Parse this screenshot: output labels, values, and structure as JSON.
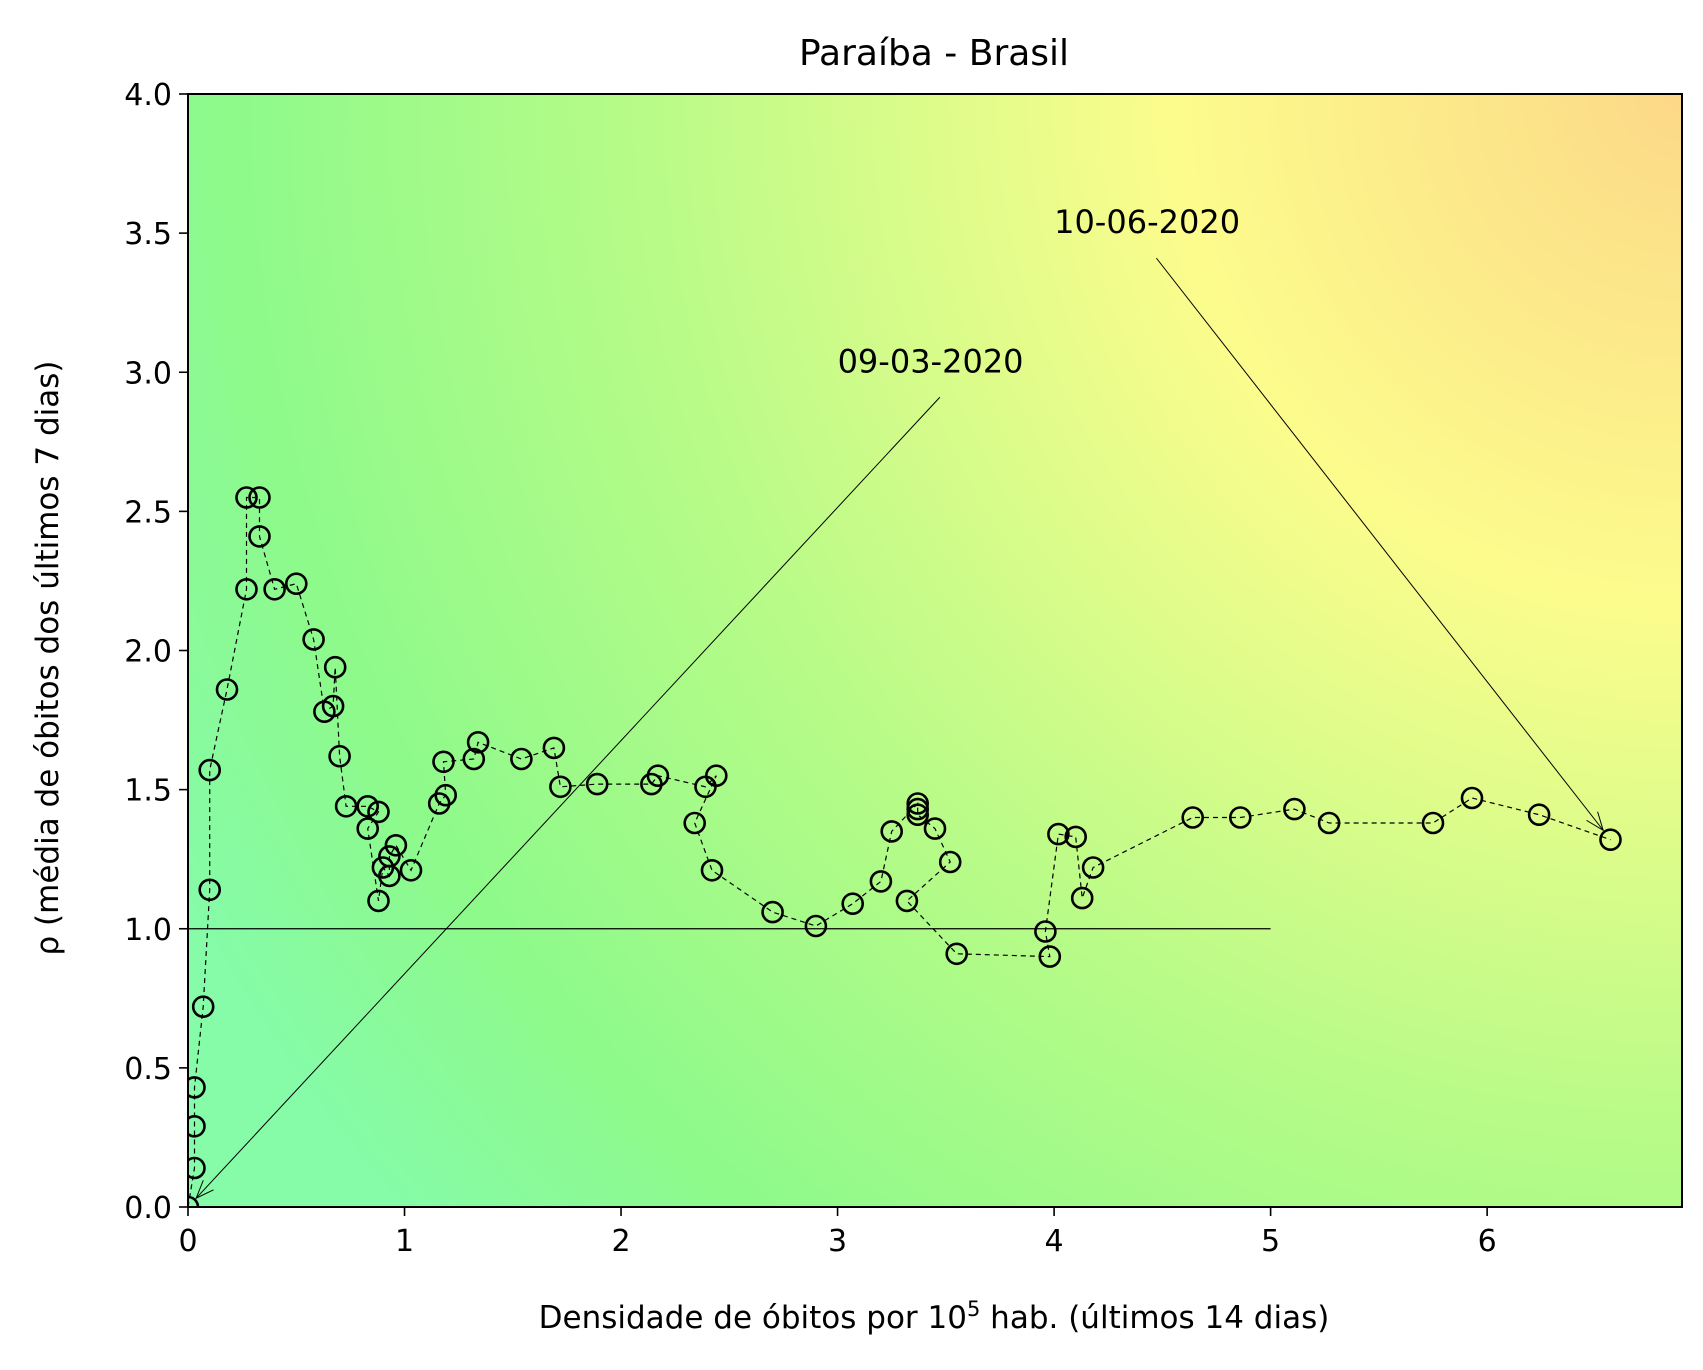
{
  "chart_data": {
    "type": "scatter",
    "title": "Paraíba - Brasil",
    "xlabel": "Densidade de óbitos por 10",
    "xlabel_sup": "5",
    "xlabel_suffix": " hab. (últimos 14 dias)",
    "ylabel": "ρ (média de óbitos dos últimos 7 dias)",
    "xlim": [
      0,
      6.9
    ],
    "ylim": [
      0,
      4.0
    ],
    "x_ticks": [
      0,
      1,
      2,
      3,
      4,
      5,
      6
    ],
    "x_tick_labels": [
      "0",
      "1",
      "2",
      "3",
      "4",
      "5",
      "6"
    ],
    "y_ticks": [
      0.0,
      0.5,
      1.0,
      1.5,
      2.0,
      2.5,
      3.0,
      3.5,
      4.0
    ],
    "y_tick_labels": [
      "0.0",
      "0.5",
      "1.0",
      "1.5",
      "2.0",
      "2.5",
      "3.0",
      "3.5",
      "4.0"
    ],
    "grid": false,
    "background": "gradient green (low-left) to yellow/orange (top-right)",
    "colors": {
      "low": "#86fba8",
      "mid": "#8efa8a",
      "high": "#fcfc8c",
      "corner": "#fcd888",
      "marker": "#000000"
    },
    "reference_line": {
      "y": 1.0,
      "x_start": 0,
      "x_end": 5
    },
    "series": [
      {
        "marker": "circle-open",
        "line": "dashed",
        "points": [
          [
            0.0,
            0.0
          ],
          [
            0.03,
            0.14
          ],
          [
            0.03,
            0.29
          ],
          [
            0.03,
            0.43
          ],
          [
            0.07,
            0.72
          ],
          [
            0.1,
            1.14
          ],
          [
            0.1,
            1.57
          ],
          [
            0.18,
            1.86
          ],
          [
            0.27,
            2.22
          ],
          [
            0.27,
            2.55
          ],
          [
            0.33,
            2.55
          ],
          [
            0.33,
            2.41
          ],
          [
            0.4,
            2.22
          ],
          [
            0.5,
            2.24
          ],
          [
            0.58,
            2.04
          ],
          [
            0.63,
            1.78
          ],
          [
            0.67,
            1.8
          ],
          [
            0.68,
            1.94
          ],
          [
            0.7,
            1.62
          ],
          [
            0.73,
            1.44
          ],
          [
            0.83,
            1.44
          ],
          [
            0.88,
            1.42
          ],
          [
            0.83,
            1.36
          ],
          [
            0.88,
            1.1
          ],
          [
            0.9,
            1.22
          ],
          [
            0.93,
            1.19
          ],
          [
            0.93,
            1.26
          ],
          [
            0.96,
            1.3
          ],
          [
            1.03,
            1.21
          ],
          [
            1.16,
            1.45
          ],
          [
            1.19,
            1.48
          ],
          [
            1.18,
            1.6
          ],
          [
            1.32,
            1.61
          ],
          [
            1.34,
            1.67
          ],
          [
            1.54,
            1.61
          ],
          [
            1.69,
            1.65
          ],
          [
            1.72,
            1.51
          ],
          [
            1.89,
            1.52
          ],
          [
            2.14,
            1.52
          ],
          [
            2.17,
            1.55
          ],
          [
            2.39,
            1.51
          ],
          [
            2.44,
            1.55
          ],
          [
            2.34,
            1.38
          ],
          [
            2.42,
            1.21
          ],
          [
            2.7,
            1.06
          ],
          [
            2.9,
            1.01
          ],
          [
            3.07,
            1.09
          ],
          [
            3.2,
            1.17
          ],
          [
            3.25,
            1.35
          ],
          [
            3.37,
            1.45
          ],
          [
            3.37,
            1.43
          ],
          [
            3.37,
            1.41
          ],
          [
            3.45,
            1.36
          ],
          [
            3.52,
            1.24
          ],
          [
            3.32,
            1.1
          ],
          [
            3.55,
            0.91
          ],
          [
            3.98,
            0.9
          ],
          [
            3.96,
            0.99
          ],
          [
            4.02,
            1.34
          ],
          [
            4.1,
            1.33
          ],
          [
            4.13,
            1.11
          ],
          [
            4.18,
            1.22
          ],
          [
            4.64,
            1.4
          ],
          [
            4.86,
            1.4
          ],
          [
            5.11,
            1.43
          ],
          [
            5.27,
            1.38
          ],
          [
            5.75,
            1.38
          ],
          [
            5.93,
            1.47
          ],
          [
            6.24,
            1.41
          ],
          [
            6.57,
            1.32
          ]
        ]
      }
    ],
    "annotations": [
      {
        "text": "09-03-2020",
        "text_at": [
          3.0,
          3.0
        ],
        "arrow_to": [
          0.0,
          0.0
        ]
      },
      {
        "text": "10-06-2020",
        "text_at": [
          4.0,
          3.5
        ],
        "arrow_to": [
          6.57,
          1.32
        ]
      }
    ]
  }
}
